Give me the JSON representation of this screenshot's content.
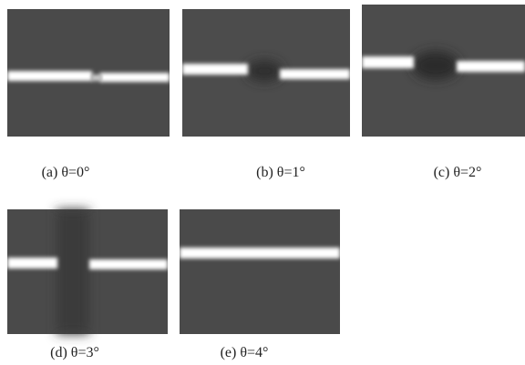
{
  "figure": {
    "panels": [
      {
        "caption": "(a) θ=0°"
      },
      {
        "caption": "(b) θ=1°"
      },
      {
        "caption": "(c) θ=2°"
      },
      {
        "caption": "(d) θ=3°"
      },
      {
        "caption": "(e) θ=4°"
      }
    ]
  }
}
